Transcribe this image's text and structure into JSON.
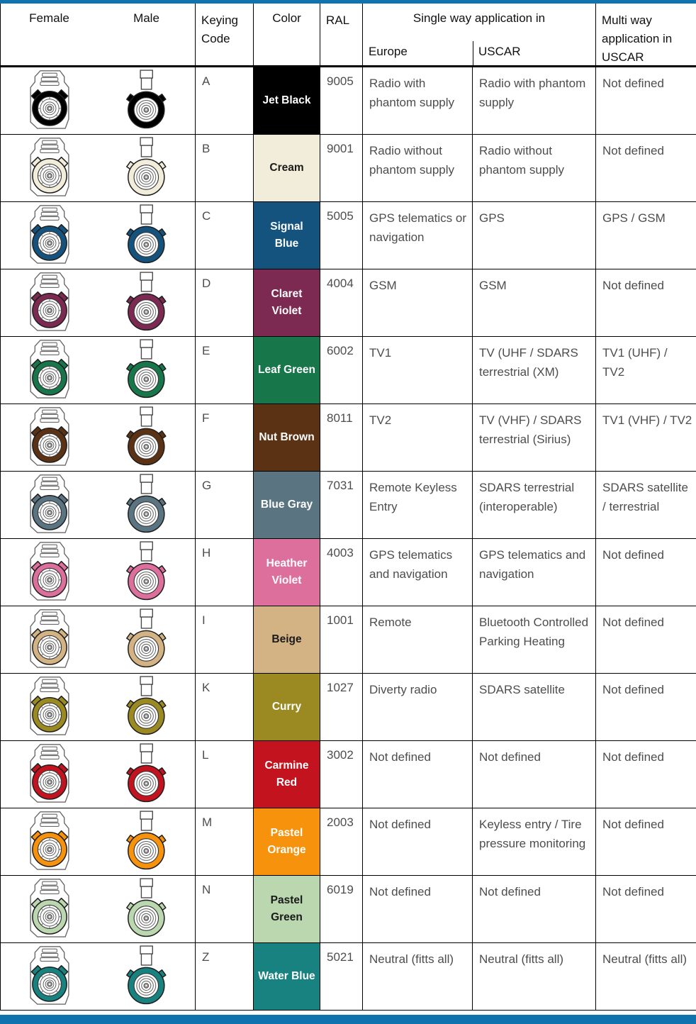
{
  "bars": {
    "accent_color": "#1173ad"
  },
  "header": {
    "female": "Female",
    "male": "Male",
    "keying_code": "Keying Code",
    "color": "Color",
    "ral": "RAL",
    "single_way": "Single way application in",
    "europe": "Europe",
    "uscar": "USCAR",
    "multi_way": "Multi way application in USCAR"
  },
  "rows": [
    {
      "code": "A",
      "color_name": "Jet Black",
      "color_hex": "#000000",
      "label_color": "#ffffff",
      "ral": "9005",
      "europe": "Radio with phantom supply",
      "uscar": "Radio with phantom supply",
      "multi": "Not defined"
    },
    {
      "code": "B",
      "color_name": "Cream",
      "color_hex": "#f2ecda",
      "label_color": "#1a1a1a",
      "ral": "9001",
      "europe": "Radio without phantom supply",
      "uscar": "Radio without phantom supply",
      "multi": "Not defined"
    },
    {
      "code": "C",
      "color_name": "Signal Blue",
      "color_hex": "#15537f",
      "label_color": "#ffffff",
      "ral": "5005",
      "europe": "GPS telematics or navigation",
      "uscar": "GPS",
      "multi": "GPS / GSM"
    },
    {
      "code": "D",
      "color_name": "Claret Violet",
      "color_hex": "#7d2a52",
      "label_color": "#ffffff",
      "ral": "4004",
      "europe": "GSM",
      "uscar": "GSM",
      "multi": "Not defined"
    },
    {
      "code": "E",
      "color_name": "Leaf Green",
      "color_hex": "#17774b",
      "label_color": "#ffffff",
      "ral": "6002",
      "europe": "TV1",
      "uscar": "TV (UHF / SDARS terrestrial (XM)",
      "multi": "TV1 (UHF) / TV2"
    },
    {
      "code": "F",
      "color_name": "Nut Brown",
      "color_hex": "#5b3213",
      "label_color": "#ffffff",
      "ral": "8011",
      "europe": "TV2",
      "uscar": "TV (VHF) / SDARS terrestrial (Sirius)",
      "multi": "TV1 (VHF) / TV2"
    },
    {
      "code": "G",
      "color_name": "Blue Gray",
      "color_hex": "#5a7581",
      "label_color": "#ffffff",
      "ral": "7031",
      "europe": "Remote Keyless Entry",
      "uscar": "SDARS terrestrial (interoperable)",
      "multi": "SDARS satellite / terrestrial"
    },
    {
      "code": "H",
      "color_name": "Heather Violet",
      "color_hex": "#dd6f9d",
      "label_color": "#ffffff",
      "ral": "4003",
      "europe": "GPS telematics and navigation",
      "uscar": "GPS telematics and navigation",
      "multi": "Not defined"
    },
    {
      "code": "I",
      "color_name": "Beige",
      "color_hex": "#d3b384",
      "label_color": "#1a1a1a",
      "ral": "1001",
      "europe": "Remote",
      "uscar": "Bluetooth Controlled Parking Heating",
      "multi": "Not defined"
    },
    {
      "code": "K",
      "color_name": "Curry",
      "color_hex": "#9b8a21",
      "label_color": "#ffffff",
      "ral": "1027",
      "europe": "Diverty radio",
      "uscar": "SDARS satellite",
      "multi": "Not defined"
    },
    {
      "code": "L",
      "color_name": "Carmine Red",
      "color_hex": "#c2131f",
      "label_color": "#ffffff",
      "ral": "3002",
      "europe": "Not defined",
      "uscar": "Not defined",
      "multi": "Not defined"
    },
    {
      "code": "M",
      "color_name": "Pastel Orange",
      "color_hex": "#f7920d",
      "label_color": "#ffffff",
      "ral": "2003",
      "europe": "Not defined",
      "uscar": "Keyless entry / Tire pressure monitoring",
      "multi": "Not defined"
    },
    {
      "code": "N",
      "color_name": "Pastel Green",
      "color_hex": "#bad7af",
      "label_color": "#1a1a1a",
      "ral": "6019",
      "europe": "Not defined",
      "uscar": "Not defined",
      "multi": "Not defined"
    },
    {
      "code": "Z",
      "color_name": "Water Blue",
      "color_hex": "#188280",
      "label_color": "#ffffff",
      "ral": "5021",
      "europe": "Neutral (fitts all)",
      "uscar": "Neutral (fitts all)",
      "multi": "Neutral (fitts all)"
    }
  ]
}
